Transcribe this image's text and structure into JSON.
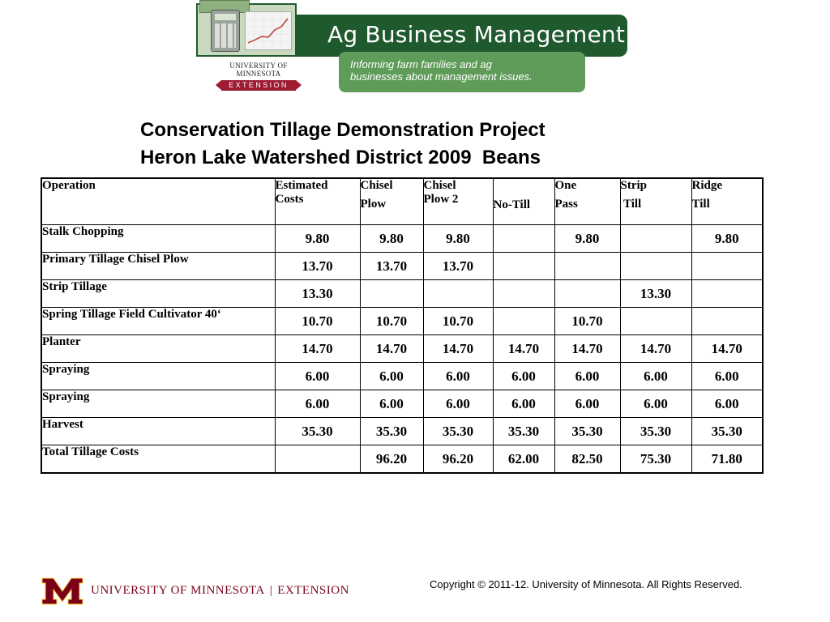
{
  "header": {
    "brand_title": "Ag Business Management",
    "tagline_line1": "Informing farm families and ag",
    "tagline_line2": "businesses about management issues.",
    "university": "UNIVERSITY OF MINNESOTA",
    "extension": "EXTENSION",
    "colors": {
      "banner_green": "#1f5a2e",
      "tagline_green": "#5f9c59",
      "maroon": "#9e1b32"
    }
  },
  "title": {
    "line1": "Conservation Tillage Demonstration Project",
    "line2": "Heron Lake Watershed District 2009  Beans"
  },
  "table": {
    "headers": [
      {
        "line1": "Operation",
        "line2": ""
      },
      {
        "line1": "Estimated",
        "line2": "Costs"
      },
      {
        "line1": "Chisel",
        "line2": "Plow"
      },
      {
        "line1": "Chisel",
        "line2": "Plow 2"
      },
      {
        "line1": "",
        "line2": "No-Till"
      },
      {
        "line1": "One",
        "line2": "Pass"
      },
      {
        "line1": "Strip",
        "line2": " Till"
      },
      {
        "line1": "Ridge",
        "line2": "Till"
      }
    ],
    "rows": [
      {
        "operation": "Stalk Chopping",
        "values": [
          "9.80",
          "9.80",
          "9.80",
          "",
          "9.80",
          "",
          "9.80"
        ]
      },
      {
        "operation": "Primary Tillage Chisel Plow",
        "values": [
          "13.70",
          "13.70",
          "13.70",
          "",
          "",
          "",
          ""
        ]
      },
      {
        "operation": "Strip Tillage",
        "values": [
          "13.30",
          "",
          "",
          "",
          "",
          "13.30",
          ""
        ]
      },
      {
        "operation": "Spring Tillage Field Cultivator 40‘",
        "values": [
          "10.70",
          "10.70",
          "10.70",
          "",
          "10.70",
          "",
          ""
        ]
      },
      {
        "operation": "Planter",
        "values": [
          "14.70",
          "14.70",
          "14.70",
          "14.70",
          "14.70",
          "14.70",
          "14.70"
        ]
      },
      {
        "operation": "Spraying",
        "values": [
          "6.00",
          "6.00",
          "6.00",
          "6.00",
          "6.00",
          "6.00",
          "6.00"
        ]
      },
      {
        "operation": "Spraying",
        "values": [
          "6.00",
          "6.00",
          "6.00",
          "6.00",
          "6.00",
          "6.00",
          "6.00"
        ]
      },
      {
        "operation": "Harvest",
        "values": [
          "35.30",
          "35.30",
          "35.30",
          "35.30",
          "35.30",
          "35.30",
          "35.30"
        ]
      },
      {
        "operation": "Total Tillage Costs",
        "values": [
          "",
          "96.20",
          "96.20",
          "62.00",
          "82.50",
          "75.30",
          "71.80"
        ]
      }
    ]
  },
  "footer": {
    "university": "UNIVERSITY OF MINNESOTA",
    "separator": "|",
    "extension": "EXTENSION",
    "copyright": "Copyright © 2011-12. University of Minnesota. All Rights Reserved."
  }
}
